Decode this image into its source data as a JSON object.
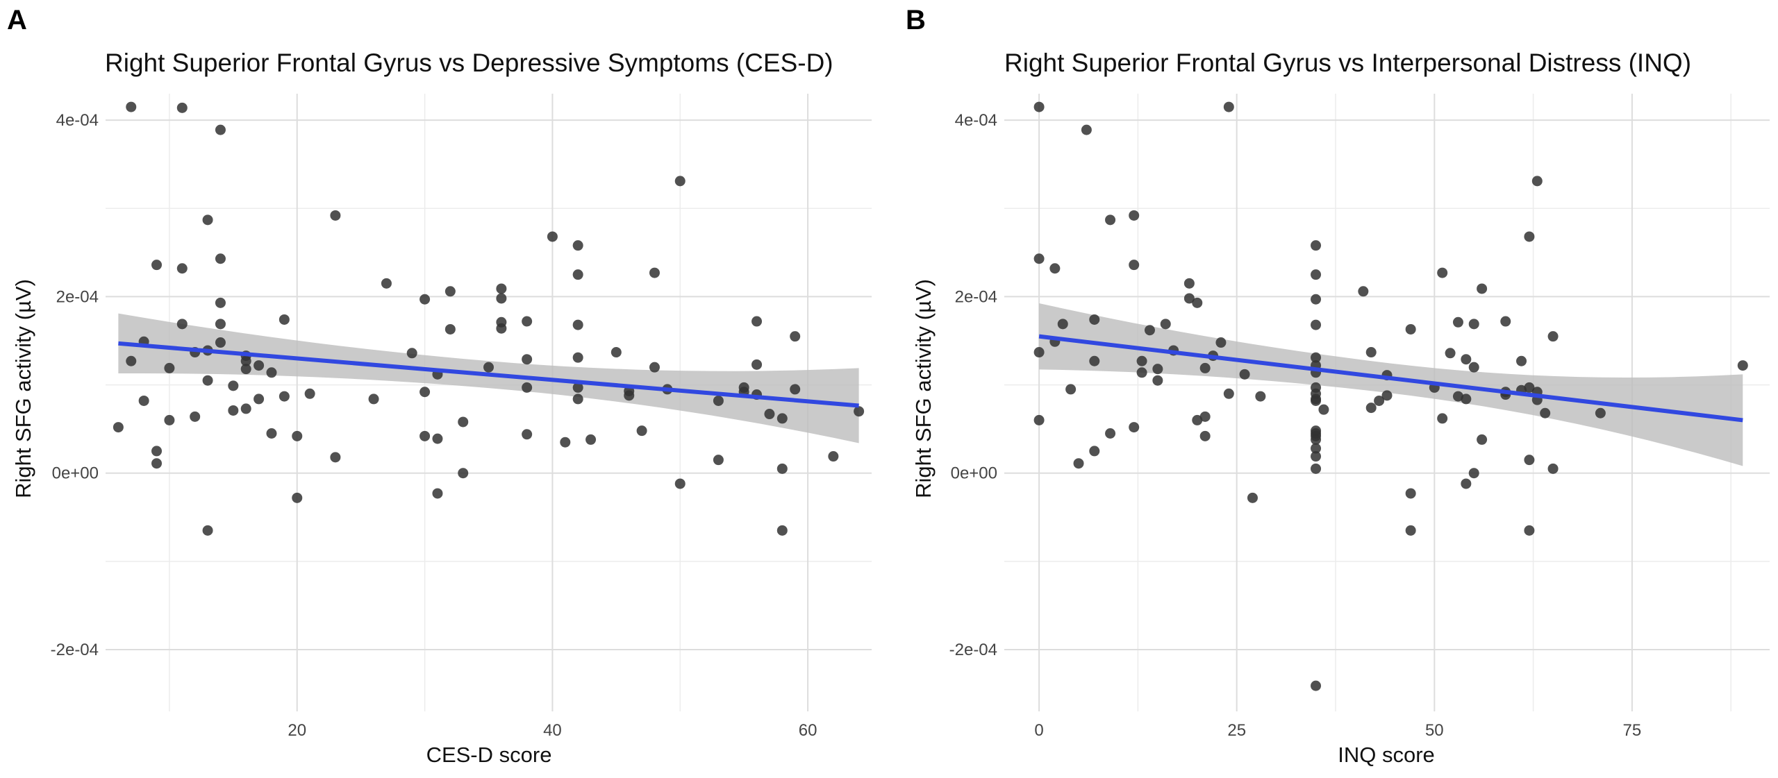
{
  "chart_data": [
    {
      "panel": "A",
      "type": "scatter",
      "title": "Right Superior Frontal Gyrus vs Depressive Symptoms (CES-D)",
      "xlabel": "CES-D score",
      "ylabel": "Right SFG activity (µV)",
      "xlim": [
        5,
        65
      ],
      "ylim": [
        -0.00027,
        0.00043
      ],
      "x_ticks": [
        20,
        40,
        60
      ],
      "x_tick_labels": [
        "20",
        "40",
        "60"
      ],
      "y_ticks": [
        -0.0002,
        0,
        0.0002,
        0.0004
      ],
      "y_tick_labels": [
        "-2e-04",
        "0e+00",
        "2e-04",
        "4e-04"
      ],
      "grid": true,
      "point_color": "#333333",
      "fit_color": "#3148e0",
      "band_color": "#bdbdbd",
      "fit": {
        "x": [
          6,
          64
        ],
        "y": [
          0.000147,
          7.65e-05
        ],
        "ci_low": [
          0.000113,
          3.4e-05
        ],
        "ci_high": [
          0.000181,
          0.000119
        ]
      },
      "x": [
        6,
        7,
        7,
        8,
        8,
        9,
        9,
        9,
        10,
        10,
        11,
        11,
        11,
        12,
        12,
        13,
        13,
        13,
        13,
        14,
        14,
        14,
        14,
        14,
        15,
        15,
        16,
        16,
        16,
        16,
        17,
        17,
        18,
        18,
        19,
        19,
        20,
        20,
        21,
        23,
        23,
        26,
        27,
        29,
        30,
        30,
        30,
        31,
        31,
        31,
        32,
        32,
        33,
        33,
        35,
        36,
        36,
        36,
        36,
        38,
        38,
        38,
        38,
        40,
        41,
        42,
        42,
        42,
        42,
        42,
        42,
        43,
        45,
        46,
        46,
        47,
        48,
        48,
        49,
        50,
        50,
        53,
        53,
        55,
        55,
        56,
        56,
        56,
        57,
        58,
        58,
        58,
        59,
        59,
        62,
        64
      ],
      "y": [
        5.2e-05,
        0.000127,
        0.000415,
        8.2e-05,
        0.000149,
        0.000236,
        2.5e-05,
        1.1e-05,
        6e-05,
        0.000119,
        0.000414,
        0.000232,
        0.000169,
        0.000137,
        6.4e-05,
        0.000287,
        0.000139,
        0.000105,
        -6.5e-05,
        0.000389,
        0.000243,
        0.000193,
        0.000169,
        0.000148,
        9.9e-05,
        7.1e-05,
        0.000133,
        0.000127,
        0.000118,
        7.3e-05,
        0.000122,
        8.4e-05,
        0.000114,
        4.5e-05,
        8.7e-05,
        0.000174,
        4.2e-05,
        -2.8e-05,
        9e-05,
        0.000292,
        1.8e-05,
        8.4e-05,
        0.000215,
        0.000136,
        0.000197,
        9.2e-05,
        4.2e-05,
        3.9e-05,
        0.000112,
        -2.3e-05,
        0.000206,
        0.000163,
        5.8e-05,
        0.0,
        0.00012,
        0.000209,
        0.000198,
        0.000171,
        0.000164,
        0.000172,
        0.000129,
        9.7e-05,
        4.4e-05,
        0.000268,
        3.5e-05,
        0.000258,
        0.000225,
        0.000168,
        0.000131,
        9.7e-05,
        8.4e-05,
        3.8e-05,
        0.000137,
        9.3e-05,
        8.8e-05,
        4.8e-05,
        0.000227,
        0.00012,
        9.5e-05,
        0.000331,
        -1.2e-05,
        8.2e-05,
        1.5e-05,
        9.7e-05,
        9.2e-05,
        0.000172,
        0.000123,
        8.9e-05,
        6.7e-05,
        6.2e-05,
        5e-06,
        -6.5e-05,
        0.000155,
        9.5e-05,
        1.9e-05,
        7e-05
      ]
    },
    {
      "panel": "B",
      "type": "scatter",
      "title": "Right Superior Frontal Gyrus vs Interpersonal Distress (INQ)",
      "xlabel": "INQ score",
      "ylabel": "Right SFG activity (µV)",
      "xlim": [
        -4.4,
        92.4
      ],
      "ylim": [
        -0.00027,
        0.00043
      ],
      "x_ticks": [
        0,
        25,
        50,
        75
      ],
      "x_tick_labels": [
        "0",
        "25",
        "50",
        "75"
      ],
      "y_ticks": [
        -0.0002,
        0,
        0.0002,
        0.0004
      ],
      "y_tick_labels": [
        "-2e-04",
        "0e+00",
        "2e-04",
        "4e-04"
      ],
      "grid": true,
      "point_color": "#333333",
      "fit_color": "#3148e0",
      "band_color": "#bdbdbd",
      "fit": {
        "x": [
          0,
          89
        ],
        "y": [
          0.000155,
          6e-05
        ],
        "ci_low": [
          0.000117,
          7e-06
        ],
        "ci_high": [
          0.000192,
          0.000111
        ]
      },
      "x": [
        0,
        0,
        0,
        0,
        2,
        2,
        3,
        4,
        5,
        6,
        7,
        7,
        7,
        9,
        9,
        12,
        12,
        12,
        13,
        13,
        14,
        15,
        15,
        16,
        17,
        19,
        19,
        20,
        20,
        21,
        21,
        21,
        22,
        23,
        24,
        24,
        26,
        27,
        28,
        35,
        35,
        35,
        35,
        35,
        35,
        35,
        35,
        35,
        35,
        35,
        35,
        35,
        35,
        35,
        35,
        35,
        35,
        35,
        36,
        41,
        42,
        42,
        43,
        44,
        44,
        47,
        47,
        47,
        50,
        51,
        51,
        52,
        53,
        53,
        54,
        54,
        54,
        55,
        55,
        55,
        56,
        56,
        59,
        59,
        59,
        61,
        61,
        62,
        62,
        62,
        62,
        63,
        63,
        63,
        64,
        65,
        65,
        71,
        89
      ],
      "y": [
        0.000415,
        0.000243,
        0.000137,
        6e-05,
        0.000232,
        0.000149,
        0.000169,
        9.5e-05,
        1.1e-05,
        0.000389,
        0.000174,
        0.000127,
        2.5e-05,
        0.000287,
        4.5e-05,
        0.000292,
        0.000236,
        5.2e-05,
        0.000127,
        0.000114,
        0.000162,
        0.000118,
        0.000105,
        0.000169,
        0.000139,
        0.000215,
        0.000198,
        6e-05,
        0.000193,
        6.4e-05,
        4.2e-05,
        0.000119,
        0.000133,
        0.000148,
        0.000415,
        9e-05,
        0.000112,
        -2.8e-05,
        8.7e-05,
        0.000258,
        0.000225,
        0.000197,
        0.000168,
        0.000131,
        0.000122,
        0.000114,
        9.7e-05,
        9e-05,
        8.4e-05,
        8.2e-05,
        4.8e-05,
        4.5e-05,
        4.2e-05,
        3.8e-05,
        2.8e-05,
        1.9e-05,
        -0.000241,
        5e-06,
        7.2e-05,
        0.000206,
        0.000137,
        7.4e-05,
        8.2e-05,
        0.000111,
        8.8e-05,
        0.000163,
        -2.3e-05,
        -6.5e-05,
        9.7e-05,
        0.000227,
        6.2e-05,
        0.000136,
        0.000171,
        8.7e-05,
        0.000129,
        8.4e-05,
        -1.2e-05,
        0.000169,
        0.00012,
        0.0,
        0.000209,
        3.8e-05,
        0.000172,
        9.2e-05,
        8.9e-05,
        0.000127,
        9.4e-05,
        0.000268,
        1.5e-05,
        -6.5e-05,
        9.7e-05,
        0.000331,
        9.2e-05,
        8.3e-05,
        6.8e-05,
        0.000155,
        5e-06,
        6.8e-05,
        0.000122
      ]
    }
  ]
}
